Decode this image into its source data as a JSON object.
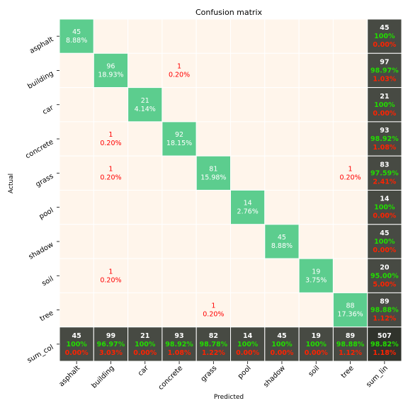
{
  "chart_data": {
    "type": "heatmap",
    "title": "Confusion matrix",
    "xlabel": "Predicted",
    "ylabel": "Actual",
    "classes": [
      "asphalt",
      "building",
      "car",
      "concrete",
      "grass",
      "pool",
      "shadow",
      "soil",
      "tree"
    ],
    "total_label": "sum_lin",
    "total_row_label": "sum_col",
    "matrix": [
      [
        45,
        0,
        0,
        0,
        0,
        0,
        0,
        0,
        0
      ],
      [
        0,
        96,
        0,
        1,
        0,
        0,
        0,
        0,
        0
      ],
      [
        0,
        0,
        21,
        0,
        0,
        0,
        0,
        0,
        0
      ],
      [
        0,
        1,
        0,
        92,
        0,
        0,
        0,
        0,
        0
      ],
      [
        0,
        1,
        0,
        0,
        81,
        0,
        0,
        0,
        1
      ],
      [
        0,
        0,
        0,
        0,
        0,
        14,
        0,
        0,
        0
      ],
      [
        0,
        0,
        0,
        0,
        0,
        0,
        45,
        0,
        0
      ],
      [
        0,
        1,
        0,
        0,
        0,
        0,
        0,
        19,
        0
      ],
      [
        0,
        0,
        0,
        0,
        1,
        0,
        0,
        0,
        88
      ]
    ],
    "cell_percent": [
      [
        "8.88%",
        "",
        "",
        "",
        "",
        "",
        "",
        "",
        ""
      ],
      [
        "",
        "18.93%",
        "",
        "0.20%",
        "",
        "",
        "",
        "",
        ""
      ],
      [
        "",
        "",
        "4.14%",
        "",
        "",
        "",
        "",
        "",
        ""
      ],
      [
        "",
        "0.20%",
        "",
        "18.15%",
        "",
        "",
        "",
        "",
        ""
      ],
      [
        "",
        "0.20%",
        "",
        "",
        "15.98%",
        "",
        "",
        "",
        "0.20%"
      ],
      [
        "",
        "",
        "",
        "",
        "",
        "2.76%",
        "",
        "",
        ""
      ],
      [
        "",
        "",
        "",
        "",
        "",
        "",
        "8.88%",
        "",
        ""
      ],
      [
        "",
        "0.20%",
        "",
        "",
        "",
        "",
        "",
        "3.75%",
        ""
      ],
      [
        "",
        "",
        "",
        "",
        "0.20%",
        "",
        "",
        "",
        "17.36%"
      ]
    ],
    "row_totals": [
      {
        "count": "45",
        "correct": "100%",
        "error": "0.00%"
      },
      {
        "count": "97",
        "correct": "98.97%",
        "error": "1.03%"
      },
      {
        "count": "21",
        "correct": "100%",
        "error": "0.00%"
      },
      {
        "count": "93",
        "correct": "98.92%",
        "error": "1.08%"
      },
      {
        "count": "83",
        "correct": "97.59%",
        "error": "2.41%"
      },
      {
        "count": "14",
        "correct": "100%",
        "error": "0.00%"
      },
      {
        "count": "45",
        "correct": "100%",
        "error": "0.00%"
      },
      {
        "count": "20",
        "correct": "95.00%",
        "error": "5.00%"
      },
      {
        "count": "89",
        "correct": "98.88%",
        "error": "1.12%"
      }
    ],
    "col_totals": [
      {
        "count": "45",
        "correct": "100%",
        "error": "0.00%"
      },
      {
        "count": "99",
        "correct": "96.97%",
        "error": "3.03%"
      },
      {
        "count": "21",
        "correct": "100%",
        "error": "0.00%"
      },
      {
        "count": "93",
        "correct": "98.92%",
        "error": "1.08%"
      },
      {
        "count": "82",
        "correct": "98.78%",
        "error": "1.22%"
      },
      {
        "count": "14",
        "correct": "100%",
        "error": "0.00%"
      },
      {
        "count": "45",
        "correct": "100%",
        "error": "0.00%"
      },
      {
        "count": "19",
        "correct": "100%",
        "error": "0.00%"
      },
      {
        "count": "89",
        "correct": "98.88%",
        "error": "1.12%"
      }
    ],
    "grand_total": {
      "count": "507",
      "correct": "98.82%",
      "error": "1.18%"
    },
    "colors": {
      "diagonal": "#5ccd8e",
      "off_diagonal": "#fff5eb",
      "total_cell": "#474a43",
      "grand_total_cell": "#30332c",
      "count_text": "#ffffff",
      "off_diag_text": "#ff0000",
      "correct_text": "#22dd00",
      "error_text": "#ff2200",
      "grid": "#ffffff"
    }
  }
}
